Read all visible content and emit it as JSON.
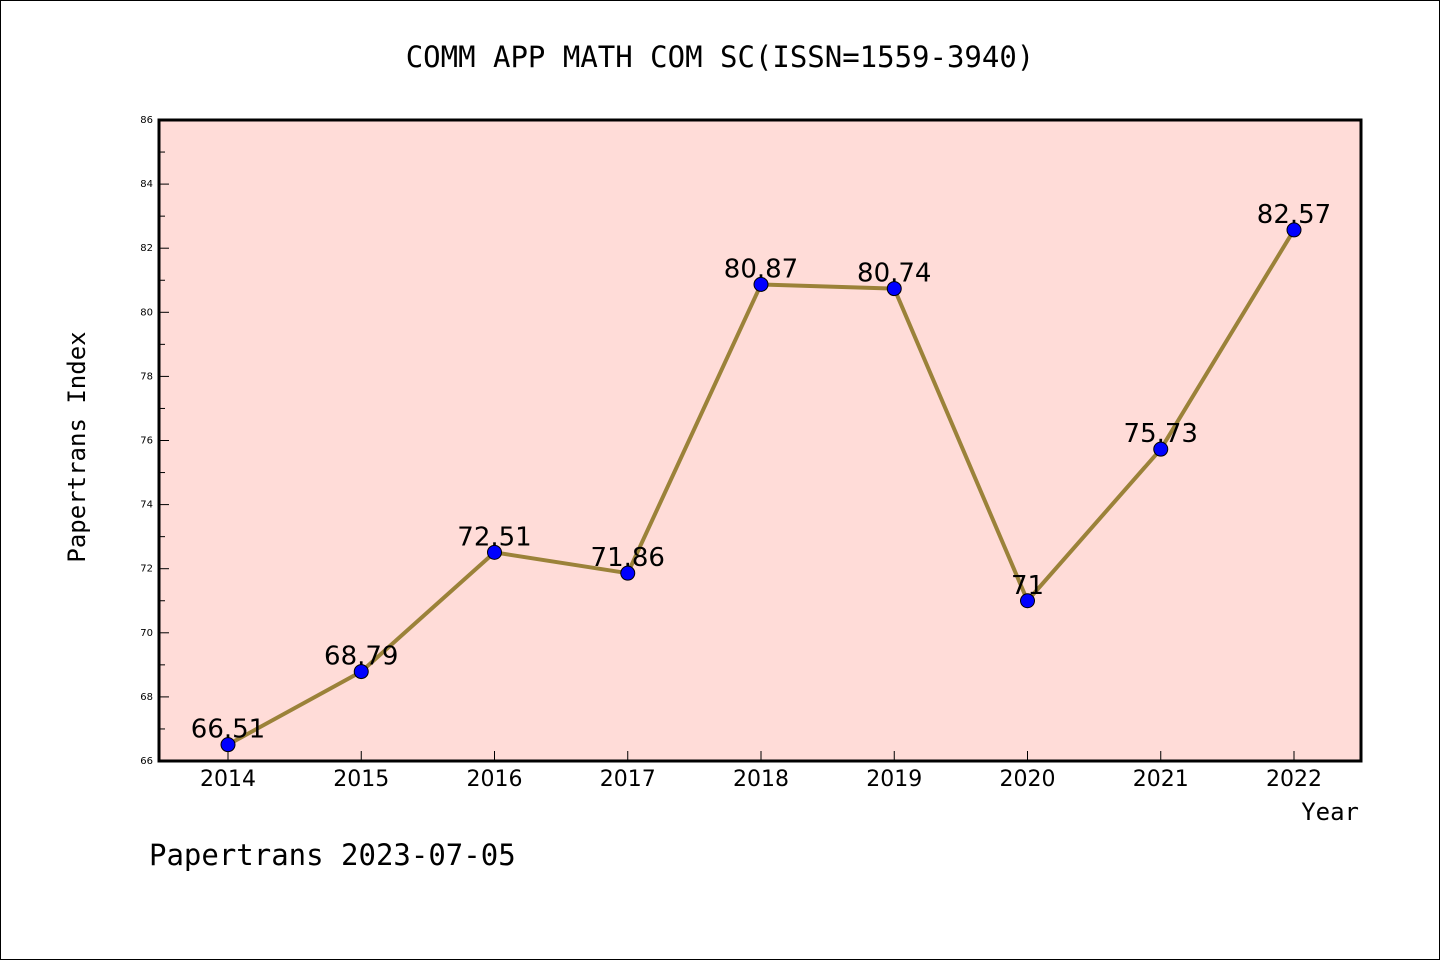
{
  "chart_data": {
    "type": "line",
    "title": "COMM APP MATH COM SC(ISSN=1559-3940)",
    "xlabel": "Year",
    "ylabel": "Papertrans Index",
    "footer": "Papertrans 2023-07-05",
    "categories": [
      "2014",
      "2015",
      "2016",
      "2017",
      "2018",
      "2019",
      "2020",
      "2021",
      "2022"
    ],
    "series": [
      {
        "values": [
          66.51,
          68.79,
          72.51,
          71.86,
          80.87,
          80.74,
          71,
          75.73,
          82.57
        ],
        "labels": [
          "66.51",
          "68.79",
          "72.51",
          "71.86",
          "80.87",
          "80.74",
          "71",
          "75.73",
          "82.57"
        ]
      }
    ],
    "ylim": [
      66,
      86
    ],
    "yticks": [
      "66",
      "68",
      "70",
      "72",
      "74",
      "76",
      "78",
      "80",
      "82",
      "84",
      "86"
    ],
    "grid": false,
    "colors": {
      "plot_background": "#ffdcd8",
      "line": "#9b8239",
      "marker": "#0000ff"
    }
  }
}
